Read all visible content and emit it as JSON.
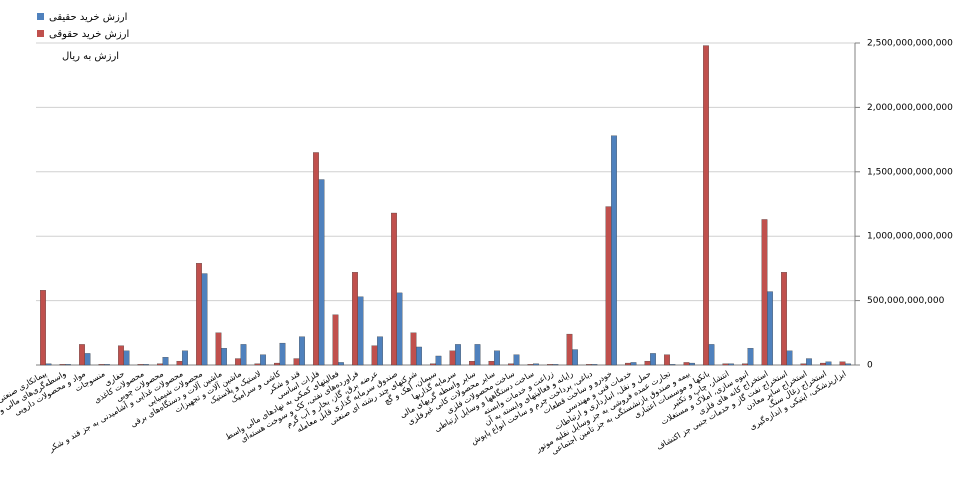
{
  "chart_data": {
    "type": "bar",
    "legend_position": "top-left",
    "annotation": "ارزش به ریال",
    "categories": [
      "پیمانکاری صنعتی",
      "واسطه‌گری‌های مالی و پولی",
      "مواد و محصولات دارویی",
      "منسوجات",
      "حفاری",
      "محصولات کاغذی",
      "محصولات چوبی",
      "محصولات غذایی و آشامیدنی به جز قند و شکر",
      "محصولات شیمیایی",
      "ماشین آلات و دستگاه‌های برقی",
      "ماشین آلات و تجهیزات",
      "لاستیک و پلاستیک",
      "کاشی و سرامیک",
      "قند و شکر",
      "فلزات اساسی",
      "فعالیتهای کمکی به نهادهای مالی واسط",
      "فراورده‌های نفتی، کک و سوخت هسته‌ای",
      "عرضه برق، گاز، بخار و آب گرم",
      "صندوق سرمایه گذاری قابل معامله",
      "شرکتهای چند رشته ای صنعتی",
      "سیمان، آهک و گچ",
      "سرمایه گذاریها",
      "سایر واسطه گریهای مالی",
      "سایر محصولات کانی غیرفلزی",
      "ساخت محصولات فلزی",
      "ساخت دستگاهها و وسایل ارتباطی",
      "زراعت و خدمات وابسته",
      "رایانه و فعالیتهای وابسته به آن",
      "دباغی، پرداخت چرم و ساخت انواع پاپوش",
      "خودرو و ساخت قطعات",
      "خدمات فنی و مهندسی",
      "حمل و نقل، انبارداری و ارتباطات",
      "تجارت عمده فروشی به جز وسایل نقلیه موتور",
      "بیمه و صندوق بازنشستگی به جز تامین اجتماعی",
      "بانکها و موسسات اعتباری",
      "انتشار، چاپ و تکثیر",
      "انبوه سازی، املاک و مستغلات",
      "استخراج کانه های فلزی",
      "استخراج نفت گاز و خدمات جنبی جز اکتشاف",
      "استخراج سایر معادن",
      "استخراج زغال سنگ",
      "ابزارپزشکی، اپتیکی و اندازه‌گیری"
    ],
    "series": [
      {
        "name": "ارزش خرید حقیقی",
        "color": "#4f81bd",
        "values": [
          10000000000,
          5000000000,
          90000000000,
          5000000000,
          110000000000,
          5000000000,
          60000000000,
          110000000000,
          710000000000,
          130000000000,
          160000000000,
          80000000000,
          170000000000,
          220000000000,
          1440000000000,
          20000000000,
          530000000000,
          220000000000,
          560000000000,
          140000000000,
          70000000000,
          160000000000,
          160000000000,
          110000000000,
          80000000000,
          10000000000,
          5000000000,
          120000000000,
          5000000000,
          1780000000000,
          20000000000,
          90000000000,
          5000000000,
          15000000000,
          160000000000,
          10000000000,
          130000000000,
          570000000000,
          110000000000,
          50000000000,
          25000000000,
          10000000000
        ]
      },
      {
        "name": "ارزش خرید حقوقی",
        "color": "#c0504d",
        "values": [
          580000000000,
          5000000000,
          160000000000,
          5000000000,
          150000000000,
          5000000000,
          10000000000,
          30000000000,
          790000000000,
          250000000000,
          50000000000,
          10000000000,
          15000000000,
          50000000000,
          1650000000000,
          390000000000,
          720000000000,
          150000000000,
          1180000000000,
          250000000000,
          10000000000,
          110000000000,
          30000000000,
          30000000000,
          10000000000,
          5000000000,
          5000000000,
          240000000000,
          5000000000,
          1230000000000,
          15000000000,
          30000000000,
          80000000000,
          20000000000,
          2480000000000,
          10000000000,
          10000000000,
          1130000000000,
          720000000000,
          10000000000,
          15000000000,
          25000000000
        ]
      }
    ],
    "ylim": [
      0,
      2500000000000
    ],
    "yticks": [
      0,
      {
        "value": 500000000000,
        "label": "500,000,000,000"
      },
      {
        "value": 1000000000000,
        "label": "1,000,000,000,000"
      },
      {
        "value": 1500000000000,
        "label": "1,500,000,000,000"
      },
      {
        "value": 2000000000000,
        "label": "2,000,000,000,000"
      },
      {
        "value": 2500000000000,
        "label": "2,500,000,000,000"
      }
    ],
    "grid": true
  }
}
